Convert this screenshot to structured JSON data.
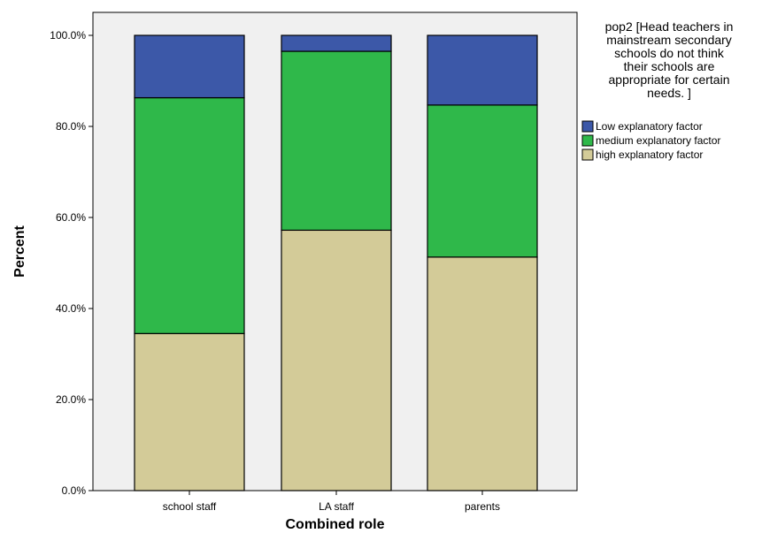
{
  "chart_data": {
    "type": "bar",
    "stacked": true,
    "categories": [
      "school staff",
      "LA staff",
      "parents"
    ],
    "series": [
      {
        "name": "high explanatory factor",
        "values": [
          34.5,
          57.2,
          51.3
        ],
        "color": "#d3cb98"
      },
      {
        "name": "medium explanatory factor",
        "values": [
          51.8,
          39.3,
          33.4
        ],
        "color": "#2fb84a"
      },
      {
        "name": "Low explanatory factor",
        "values": [
          13.7,
          3.5,
          15.3
        ],
        "color": "#3c58a8"
      }
    ],
    "legend_order": [
      "Low explanatory factor",
      "medium explanatory factor",
      "high explanatory factor"
    ],
    "legend_title_lines": [
      "pop2 [Head teachers in",
      "mainstream secondary",
      "schools do not think",
      "their schools are",
      "appropriate for certain",
      "needs. ]"
    ],
    "xlabel": "Combined role",
    "ylabel": "Percent",
    "ylim": [
      0,
      100
    ],
    "yticks": [
      "0.0%",
      "20.0%",
      "40.0%",
      "60.0%",
      "80.0%",
      "100.0%"
    ],
    "ytick_values": [
      0,
      20,
      40,
      60,
      80,
      100
    ],
    "legend_position": "right",
    "grid": false,
    "plot_background": "#f0f0f0"
  }
}
